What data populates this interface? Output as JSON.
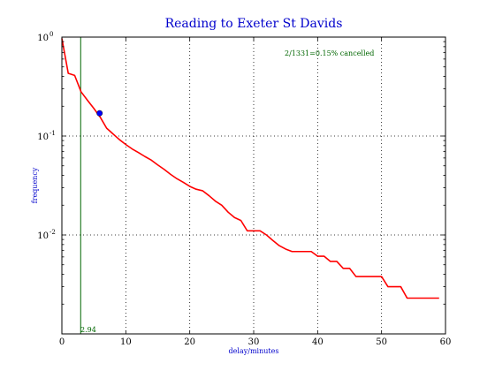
{
  "chart_data": {
    "type": "line",
    "title": "Reading to Exeter St Davids",
    "xlabel": "delay/minutes",
    "ylabel": "frequency",
    "xlim": [
      0,
      60
    ],
    "ylim": [
      0.001,
      1.0
    ],
    "yscale": "log",
    "grid": true,
    "x_ticks": [
      0,
      10,
      20,
      30,
      40,
      50,
      60
    ],
    "y_ticks": [
      {
        "value": 1.0,
        "base": "10",
        "exp": "0"
      },
      {
        "value": 0.1,
        "base": "10",
        "exp": "-1"
      },
      {
        "value": 0.01,
        "base": "10",
        "exp": "-2"
      }
    ],
    "series": [
      {
        "color": "#ff0000",
        "x": [
          0,
          1,
          2,
          3,
          4,
          5,
          6,
          7,
          8,
          9,
          10,
          11,
          12,
          13,
          14,
          15,
          16,
          17,
          18,
          19,
          20,
          21,
          22,
          23,
          24,
          25,
          26,
          27,
          28,
          29,
          30,
          31,
          32,
          33,
          34,
          35,
          36,
          37,
          38,
          39,
          40,
          41,
          42,
          43,
          44,
          45,
          46,
          47,
          48,
          49,
          50,
          51,
          52,
          53,
          54,
          55,
          56,
          57,
          58,
          59
        ],
        "y": [
          0.97,
          0.43,
          0.41,
          0.28,
          0.23,
          0.19,
          0.155,
          0.12,
          0.105,
          0.092,
          0.082,
          0.074,
          0.068,
          0.062,
          0.057,
          0.051,
          0.046,
          0.041,
          0.037,
          0.034,
          0.031,
          0.029,
          0.028,
          0.025,
          0.022,
          0.02,
          0.017,
          0.015,
          0.014,
          0.011,
          0.011,
          0.011,
          0.01,
          0.0088,
          0.0078,
          0.0072,
          0.0068,
          0.0068,
          0.0068,
          0.0068,
          0.0061,
          0.0061,
          0.0054,
          0.0054,
          0.0046,
          0.0046,
          0.0038,
          0.0038,
          0.0038,
          0.0038,
          0.0038,
          0.003,
          0.003,
          0.003,
          0.0023,
          0.0023,
          0.0023,
          0.0023,
          0.0023,
          0.0023
        ]
      }
    ],
    "marker": {
      "x": 5.9,
      "y": 0.17,
      "color": "#0000ff"
    },
    "vline": {
      "x": 2.94,
      "label": "2.94",
      "color": "#006600"
    },
    "annotation": "2/1331=0.15% cancelled"
  }
}
